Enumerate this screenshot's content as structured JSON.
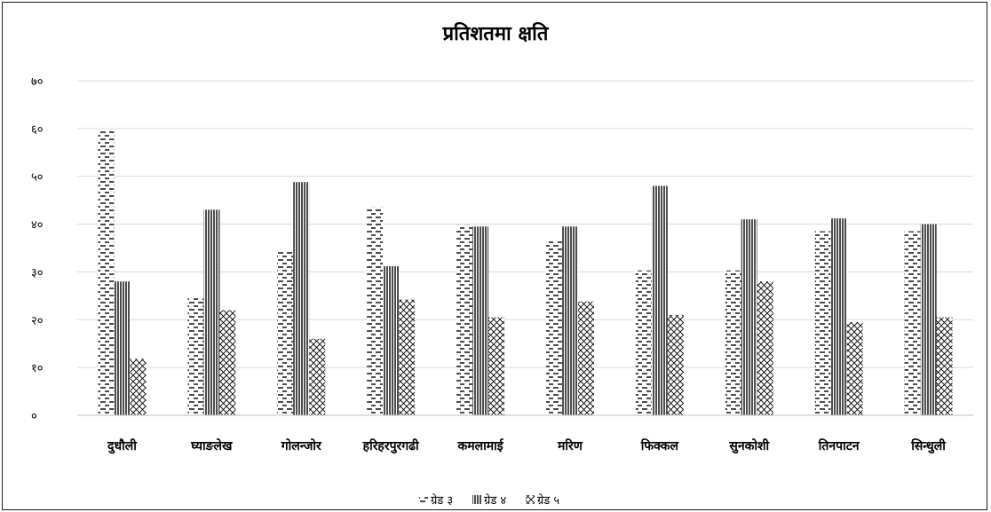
{
  "chart_data": {
    "type": "bar",
    "title": "प्रतिशतमा क्षति",
    "xlabel": "",
    "ylabel": "",
    "ylim": [
      0,
      70
    ],
    "yticks": [
      0,
      10,
      20,
      30,
      40,
      50,
      60,
      70
    ],
    "ytick_labels": [
      "०",
      "१०",
      "२०",
      "३०",
      "४०",
      "५०",
      "६०",
      "७०"
    ],
    "grid": true,
    "legend_position": "bottom",
    "categories": [
      "दुधौली",
      "घ्याङलेख",
      "गोलन्जोर",
      "हरिहरपुरगढी",
      "कमलामाई",
      "मरिण",
      "फिक्कल",
      "सुनकोशी",
      "तिनपाटन",
      "सिन्धुली"
    ],
    "series": [
      {
        "name": "ग्रेड ३",
        "pattern": "dashes",
        "values": [
          59.5,
          24.8,
          34.2,
          43.5,
          39.8,
          36.7,
          30.3,
          30.3,
          38.5,
          38.5
        ]
      },
      {
        "name": "ग्रेड ४",
        "pattern": "vertical-lines",
        "values": [
          28,
          43,
          48.8,
          31.2,
          39.5,
          39.5,
          48,
          41,
          41.2,
          40
        ]
      },
      {
        "name": "ग्रेड ५",
        "pattern": "crosshatch",
        "values": [
          11.8,
          22,
          16,
          24.2,
          20.5,
          23.8,
          21,
          28,
          19.5,
          20.5
        ]
      }
    ],
    "colors": {
      "ink": "#000000",
      "grid": "#d9d9d9",
      "border": "#1a1a1a"
    }
  }
}
